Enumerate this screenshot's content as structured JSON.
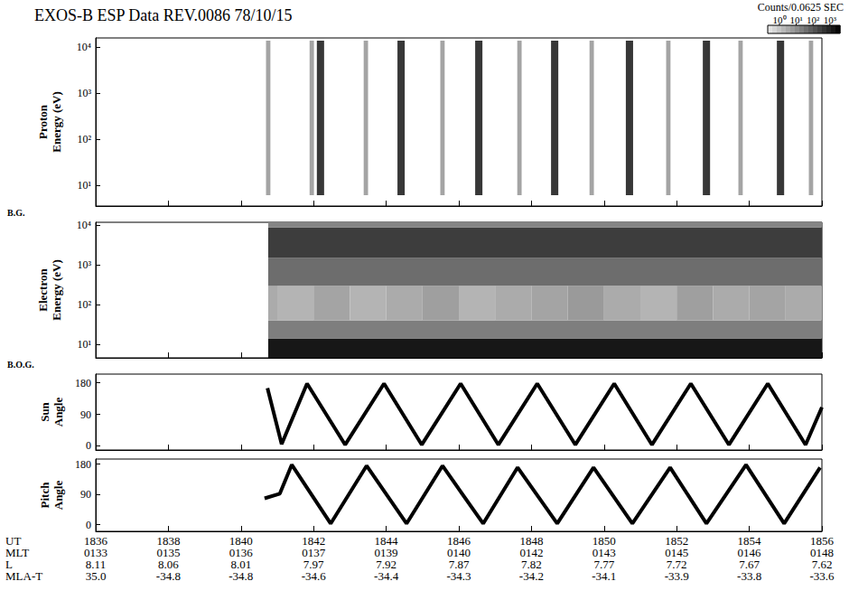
{
  "title": "EXOS-B ESP Data REV.0086 78/10/15",
  "colorbar": {
    "label": "Counts/0.0625 SEC",
    "range": [
      0.2,
      4000
    ],
    "ticks": [
      {
        "value": 1,
        "label": "10⁰"
      },
      {
        "value": 10,
        "label": "10¹"
      },
      {
        "value": 100,
        "label": "10²"
      },
      {
        "value": 1000,
        "label": "10³"
      }
    ]
  },
  "chart_data": [
    {
      "type": "heatmap",
      "ylabel": "Proton Energy (eV)",
      "background_label": "B.G.",
      "log": "y",
      "tick_labels": "y",
      "xlim": [
        1836,
        1856
      ],
      "xticks": [
        1836,
        1838,
        1840,
        1842,
        1844,
        1846,
        1848,
        1850,
        1852,
        1854,
        1856
      ],
      "ylim": [
        3.5,
        16000
      ],
      "yticks": [
        {
          "value": 10,
          "label": "10¹"
        },
        {
          "value": 100,
          "label": "10²"
        },
        {
          "value": 1000,
          "label": "10³"
        },
        {
          "value": 10000,
          "label": "10⁴"
        }
      ],
      "cells": [
        [
          1840.69,
          1840.81,
          6,
          14000,
          4
        ],
        [
          1841.89,
          1842.01,
          6,
          14000,
          4
        ],
        [
          1842.09,
          1842.29,
          6,
          14000,
          400
        ],
        [
          1843.38,
          1843.5,
          6,
          14000,
          4
        ],
        [
          1844.31,
          1844.51,
          6,
          14000,
          400
        ],
        [
          1845.49,
          1845.61,
          6,
          14000,
          4
        ],
        [
          1846.45,
          1846.65,
          6,
          14000,
          400
        ],
        [
          1847.61,
          1847.73,
          6,
          14000,
          4
        ],
        [
          1848.54,
          1848.74,
          6,
          14000,
          400
        ],
        [
          1849.6,
          1849.72,
          6,
          14000,
          4
        ],
        [
          1850.6,
          1850.8,
          6,
          14000,
          400
        ],
        [
          1851.71,
          1851.83,
          6,
          14000,
          4
        ],
        [
          1852.72,
          1852.92,
          6,
          14000,
          400
        ],
        [
          1853.7,
          1853.82,
          6,
          14000,
          4
        ],
        [
          1854.76,
          1854.96,
          6,
          14000,
          400
        ],
        [
          1855.64,
          1855.76,
          6,
          14000,
          4
        ]
      ]
    },
    {
      "type": "heatmap",
      "ylabel": "Electron Energy (eV)",
      "background_label": "B.O.G.",
      "log": "y",
      "tick_labels": "y",
      "xlim": [
        1836,
        1856
      ],
      "xticks": [
        1836,
        1838,
        1840,
        1842,
        1844,
        1846,
        1848,
        1850,
        1852,
        1854,
        1856
      ],
      "ylim": [
        4.5,
        12000
      ],
      "yticks": [
        {
          "value": 10,
          "label": "10¹"
        },
        {
          "value": 100,
          "label": "10²"
        },
        {
          "value": 1000,
          "label": "10³"
        },
        {
          "value": 10000,
          "label": "10⁴"
        }
      ],
      "cells": [
        [
          1840.75,
          1856,
          4.5,
          14,
          1500
        ],
        [
          1840.75,
          1856,
          14,
          40,
          20
        ],
        [
          1840.75,
          1841,
          40,
          300,
          3
        ],
        [
          1841,
          1842,
          40,
          300,
          2
        ],
        [
          1842,
          1843,
          40,
          300,
          4
        ],
        [
          1843,
          1844,
          40,
          300,
          2
        ],
        [
          1844,
          1845,
          40,
          300,
          3
        ],
        [
          1845,
          1846,
          40,
          300,
          5
        ],
        [
          1846,
          1847,
          40,
          300,
          2
        ],
        [
          1847,
          1848,
          40,
          300,
          3
        ],
        [
          1848,
          1849,
          40,
          300,
          4
        ],
        [
          1849,
          1850,
          40,
          300,
          6
        ],
        [
          1850,
          1851,
          40,
          300,
          3
        ],
        [
          1851,
          1852,
          40,
          300,
          2
        ],
        [
          1852,
          1853,
          40,
          300,
          5
        ],
        [
          1853,
          1854,
          40,
          300,
          3
        ],
        [
          1854,
          1855,
          40,
          300,
          4
        ],
        [
          1855,
          1856,
          40,
          300,
          3
        ],
        [
          1840.75,
          1856,
          300,
          1500,
          40
        ],
        [
          1840.75,
          1856,
          1500,
          9000,
          300
        ],
        [
          1840.75,
          1856,
          9000,
          12000,
          15
        ]
      ]
    },
    {
      "type": "line",
      "ylabel": "Sun Angle",
      "color": "#000000",
      "tick_labels": "y",
      "xlim": [
        1836,
        1856
      ],
      "xticks": [
        1836,
        1838,
        1840,
        1842,
        1844,
        1846,
        1848,
        1850,
        1852,
        1854,
        1856
      ],
      "ylim": [
        -12,
        205
      ],
      "yticks": [
        0,
        90,
        180
      ],
      "x": [
        1840.73,
        1841.12,
        1841.82,
        1842.87,
        1843.94,
        1844.98,
        1846.05,
        1847.09,
        1848.16,
        1849.21,
        1850.28,
        1851.32,
        1852.39,
        1853.44,
        1854.51,
        1855.55,
        1856.0
      ],
      "values": [
        165,
        5,
        178,
        3,
        178,
        3,
        178,
        3,
        178,
        3,
        178,
        3,
        178,
        3,
        178,
        3,
        110
      ]
    },
    {
      "type": "line",
      "ylabel": "Pitch Angle",
      "xlabel": "UT",
      "color": "#000000",
      "tick_labels": true,
      "xlim": [
        1836,
        1856
      ],
      "xticks": [
        1836,
        1838,
        1840,
        1842,
        1844,
        1846,
        1848,
        1850,
        1852,
        1854,
        1856
      ],
      "ylim": [
        -20,
        195
      ],
      "yticks": [
        0,
        90,
        180
      ],
      "x": [
        1840.65,
        1841.07,
        1841.4,
        1842.47,
        1843.46,
        1844.56,
        1845.55,
        1846.67,
        1847.62,
        1848.71,
        1849.71,
        1850.78,
        1851.82,
        1852.82,
        1853.91,
        1854.96,
        1855.95
      ],
      "values": [
        78,
        92,
        178,
        3,
        175,
        3,
        175,
        3,
        170,
        3,
        170,
        3,
        170,
        3,
        178,
        3,
        170
      ]
    }
  ],
  "ephemeris": {
    "rows": [
      {
        "label": "MLT",
        "values": [
          "0133",
          "0135",
          "0136",
          "0137",
          "0139",
          "0140",
          "0142",
          "0143",
          "0145",
          "0146",
          "0148"
        ]
      },
      {
        "label": "L",
        "values": [
          "8.11",
          "8.06",
          "8.01",
          "7.97",
          "7.92",
          "7.87",
          "7.82",
          "7.77",
          "7.72",
          "7.67",
          "7.62"
        ]
      },
      {
        "label": "MLA-T",
        "values": [
          "35.0",
          "-34.8",
          "-34.8",
          "-34.6",
          "-34.4",
          "-34.3",
          "-34.2",
          "-34.1",
          "-33.9",
          "-33.8",
          "-33.6"
        ]
      }
    ]
  }
}
